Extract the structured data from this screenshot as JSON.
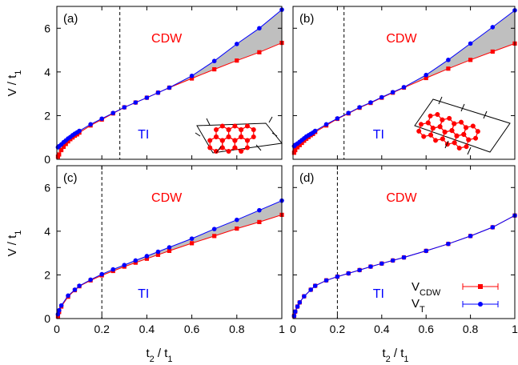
{
  "figure": {
    "shared_axes": {
      "ylabel_main": "V / t",
      "ylabel_sub": "1",
      "xlabel_main": "t",
      "xlabel_sub1": "2",
      "xlabel_mid": " / t",
      "xlabel_sub2": "1"
    },
    "legend": {
      "vcdw_main": "V",
      "vcdw_sub": "CDW",
      "vt_main": "V",
      "vt_sub": "T"
    }
  },
  "chart_data": [
    {
      "type": "line",
      "panel_label": "(a)",
      "region_labels": {
        "upper": "CDW",
        "lower": "TI"
      },
      "dashed_x": 0.28,
      "xlim": [
        0,
        1
      ],
      "ylim": [
        0,
        7
      ],
      "xticks": [
        "0",
        "0.2",
        "0.4",
        "0.6",
        "0.8",
        "1"
      ],
      "yticks": [
        "0",
        "2",
        "4",
        "6"
      ],
      "show_x_tick_labels": false,
      "show_y_tick_labels": true,
      "inset": "honeycomb-strip-a",
      "series": [
        {
          "name": "V_CDW",
          "color": "#ff0000",
          "marker": "square",
          "x": [
            0.005,
            0.01,
            0.02,
            0.03,
            0.04,
            0.05,
            0.06,
            0.07,
            0.08,
            0.09,
            0.1,
            0.15,
            0.2,
            0.25,
            0.3,
            0.35,
            0.4,
            0.45,
            0.5,
            0.6,
            0.7,
            0.8,
            0.9,
            1.0
          ],
          "y": [
            0.12,
            0.22,
            0.42,
            0.57,
            0.7,
            0.82,
            0.92,
            1.0,
            1.08,
            1.14,
            1.22,
            1.55,
            1.82,
            2.1,
            2.38,
            2.6,
            2.82,
            3.05,
            3.28,
            3.7,
            4.12,
            4.52,
            4.9,
            5.33
          ]
        },
        {
          "name": "V_T",
          "color": "#0000ff",
          "marker": "circle",
          "x": [
            0.005,
            0.01,
            0.02,
            0.03,
            0.04,
            0.05,
            0.06,
            0.07,
            0.08,
            0.09,
            0.1,
            0.15,
            0.2,
            0.25,
            0.3,
            0.35,
            0.4,
            0.45,
            0.5,
            0.6,
            0.7,
            0.8,
            0.9,
            1.0
          ],
          "y": [
            0.55,
            0.6,
            0.68,
            0.78,
            0.86,
            0.95,
            1.02,
            1.1,
            1.17,
            1.23,
            1.3,
            1.6,
            1.86,
            2.12,
            2.38,
            2.6,
            2.82,
            3.05,
            3.28,
            3.82,
            4.5,
            5.28,
            6.0,
            6.85
          ]
        }
      ]
    },
    {
      "type": "line",
      "panel_label": "(b)",
      "region_labels": {
        "upper": "CDW",
        "lower": "TI"
      },
      "dashed_x": 0.23,
      "xlim": [
        0,
        1
      ],
      "ylim": [
        0,
        7
      ],
      "xticks": [
        "0",
        "0.2",
        "0.4",
        "0.6",
        "0.8",
        "1"
      ],
      "yticks": [
        "0",
        "2",
        "4",
        "6"
      ],
      "show_x_tick_labels": false,
      "show_y_tick_labels": false,
      "inset": "honeycomb-strip-b",
      "series": [
        {
          "name": "V_CDW",
          "color": "#ff0000",
          "marker": "square",
          "x": [
            0.005,
            0.01,
            0.02,
            0.03,
            0.04,
            0.05,
            0.06,
            0.07,
            0.08,
            0.09,
            0.1,
            0.15,
            0.2,
            0.25,
            0.3,
            0.35,
            0.4,
            0.45,
            0.5,
            0.6,
            0.7,
            0.8,
            0.9,
            1.0
          ],
          "y": [
            0.3,
            0.42,
            0.55,
            0.65,
            0.75,
            0.85,
            0.94,
            1.02,
            1.1,
            1.16,
            1.25,
            1.55,
            1.85,
            2.1,
            2.36,
            2.58,
            2.82,
            3.05,
            3.28,
            3.72,
            4.15,
            4.55,
            4.93,
            5.3
          ]
        },
        {
          "name": "V_T",
          "color": "#0000ff",
          "marker": "circle",
          "x": [
            0.005,
            0.01,
            0.02,
            0.03,
            0.04,
            0.05,
            0.06,
            0.07,
            0.08,
            0.09,
            0.1,
            0.15,
            0.2,
            0.25,
            0.3,
            0.35,
            0.4,
            0.45,
            0.5,
            0.6,
            0.7,
            0.8,
            0.9,
            1.0
          ],
          "y": [
            0.6,
            0.66,
            0.72,
            0.8,
            0.88,
            0.96,
            1.04,
            1.1,
            1.16,
            1.22,
            1.3,
            1.6,
            1.87,
            2.12,
            2.38,
            2.6,
            2.84,
            3.07,
            3.3,
            3.86,
            4.55,
            5.3,
            6.05,
            6.82
          ]
        }
      ]
    },
    {
      "type": "line",
      "panel_label": "(c)",
      "region_labels": {
        "upper": "CDW",
        "lower": "TI"
      },
      "dashed_x": 0.2,
      "xlim": [
        0,
        1
      ],
      "ylim": [
        0,
        7
      ],
      "xticks": [
        "0",
        "0.2",
        "0.4",
        "0.6",
        "0.8",
        "1"
      ],
      "yticks": [
        "0",
        "2",
        "4",
        "6"
      ],
      "show_x_tick_labels": true,
      "show_y_tick_labels": true,
      "inset": "",
      "series": [
        {
          "name": "V_CDW",
          "color": "#ff0000",
          "marker": "square",
          "x": [
            0.005,
            0.01,
            0.02,
            0.05,
            0.08,
            0.1,
            0.15,
            0.2,
            0.25,
            0.3,
            0.35,
            0.4,
            0.45,
            0.5,
            0.6,
            0.7,
            0.8,
            0.9,
            1.0
          ],
          "y": [
            0.1,
            0.3,
            0.55,
            1.0,
            1.3,
            1.48,
            1.75,
            1.98,
            2.18,
            2.38,
            2.56,
            2.74,
            2.92,
            3.1,
            3.45,
            3.78,
            4.12,
            4.42,
            4.75
          ]
        },
        {
          "name": "V_T",
          "color": "#0000ff",
          "marker": "circle",
          "x": [
            0.005,
            0.01,
            0.02,
            0.05,
            0.08,
            0.1,
            0.15,
            0.2,
            0.25,
            0.3,
            0.35,
            0.4,
            0.45,
            0.5,
            0.6,
            0.7,
            0.8,
            0.9,
            1.0
          ],
          "y": [
            0.2,
            0.38,
            0.6,
            1.05,
            1.32,
            1.5,
            1.78,
            2.03,
            2.25,
            2.45,
            2.66,
            2.86,
            3.06,
            3.26,
            3.66,
            4.1,
            4.52,
            4.96,
            5.4
          ]
        }
      ]
    },
    {
      "type": "line",
      "panel_label": "(d)",
      "region_labels": {
        "upper": "CDW",
        "lower": "TI"
      },
      "dashed_x": 0.2,
      "xlim": [
        0,
        1
      ],
      "ylim": [
        0,
        7
      ],
      "xticks": [
        "0",
        "0.2",
        "0.4",
        "0.6",
        "0.8",
        "1"
      ],
      "yticks": [
        "0",
        "2",
        "4",
        "6"
      ],
      "show_x_tick_labels": true,
      "show_y_tick_labels": false,
      "inset": "",
      "series": [
        {
          "name": "V_CDW",
          "color": "#ff0000",
          "marker": "square",
          "x": [
            0.005,
            0.01,
            0.02,
            0.03,
            0.05,
            0.08,
            0.1,
            0.15,
            0.2,
            0.25,
            0.3,
            0.35,
            0.4,
            0.45,
            0.5,
            0.6,
            0.7,
            0.8,
            0.9,
            1.0
          ],
          "y": [
            0.12,
            0.32,
            0.55,
            0.74,
            1.02,
            1.32,
            1.5,
            1.75,
            1.92,
            2.07,
            2.22,
            2.38,
            2.52,
            2.66,
            2.8,
            3.1,
            3.42,
            3.78,
            4.18,
            4.72
          ]
        },
        {
          "name": "V_T",
          "color": "#0000ff",
          "marker": "circle",
          "x": [
            0.005,
            0.01,
            0.02,
            0.03,
            0.05,
            0.08,
            0.1,
            0.15,
            0.2,
            0.25,
            0.3,
            0.35,
            0.4,
            0.45,
            0.5,
            0.6,
            0.7,
            0.8,
            0.9,
            1.0
          ],
          "y": [
            0.12,
            0.32,
            0.55,
            0.74,
            1.02,
            1.32,
            1.5,
            1.75,
            1.92,
            2.07,
            2.22,
            2.38,
            2.52,
            2.66,
            2.8,
            3.1,
            3.42,
            3.78,
            4.18,
            4.72
          ]
        }
      ]
    }
  ]
}
